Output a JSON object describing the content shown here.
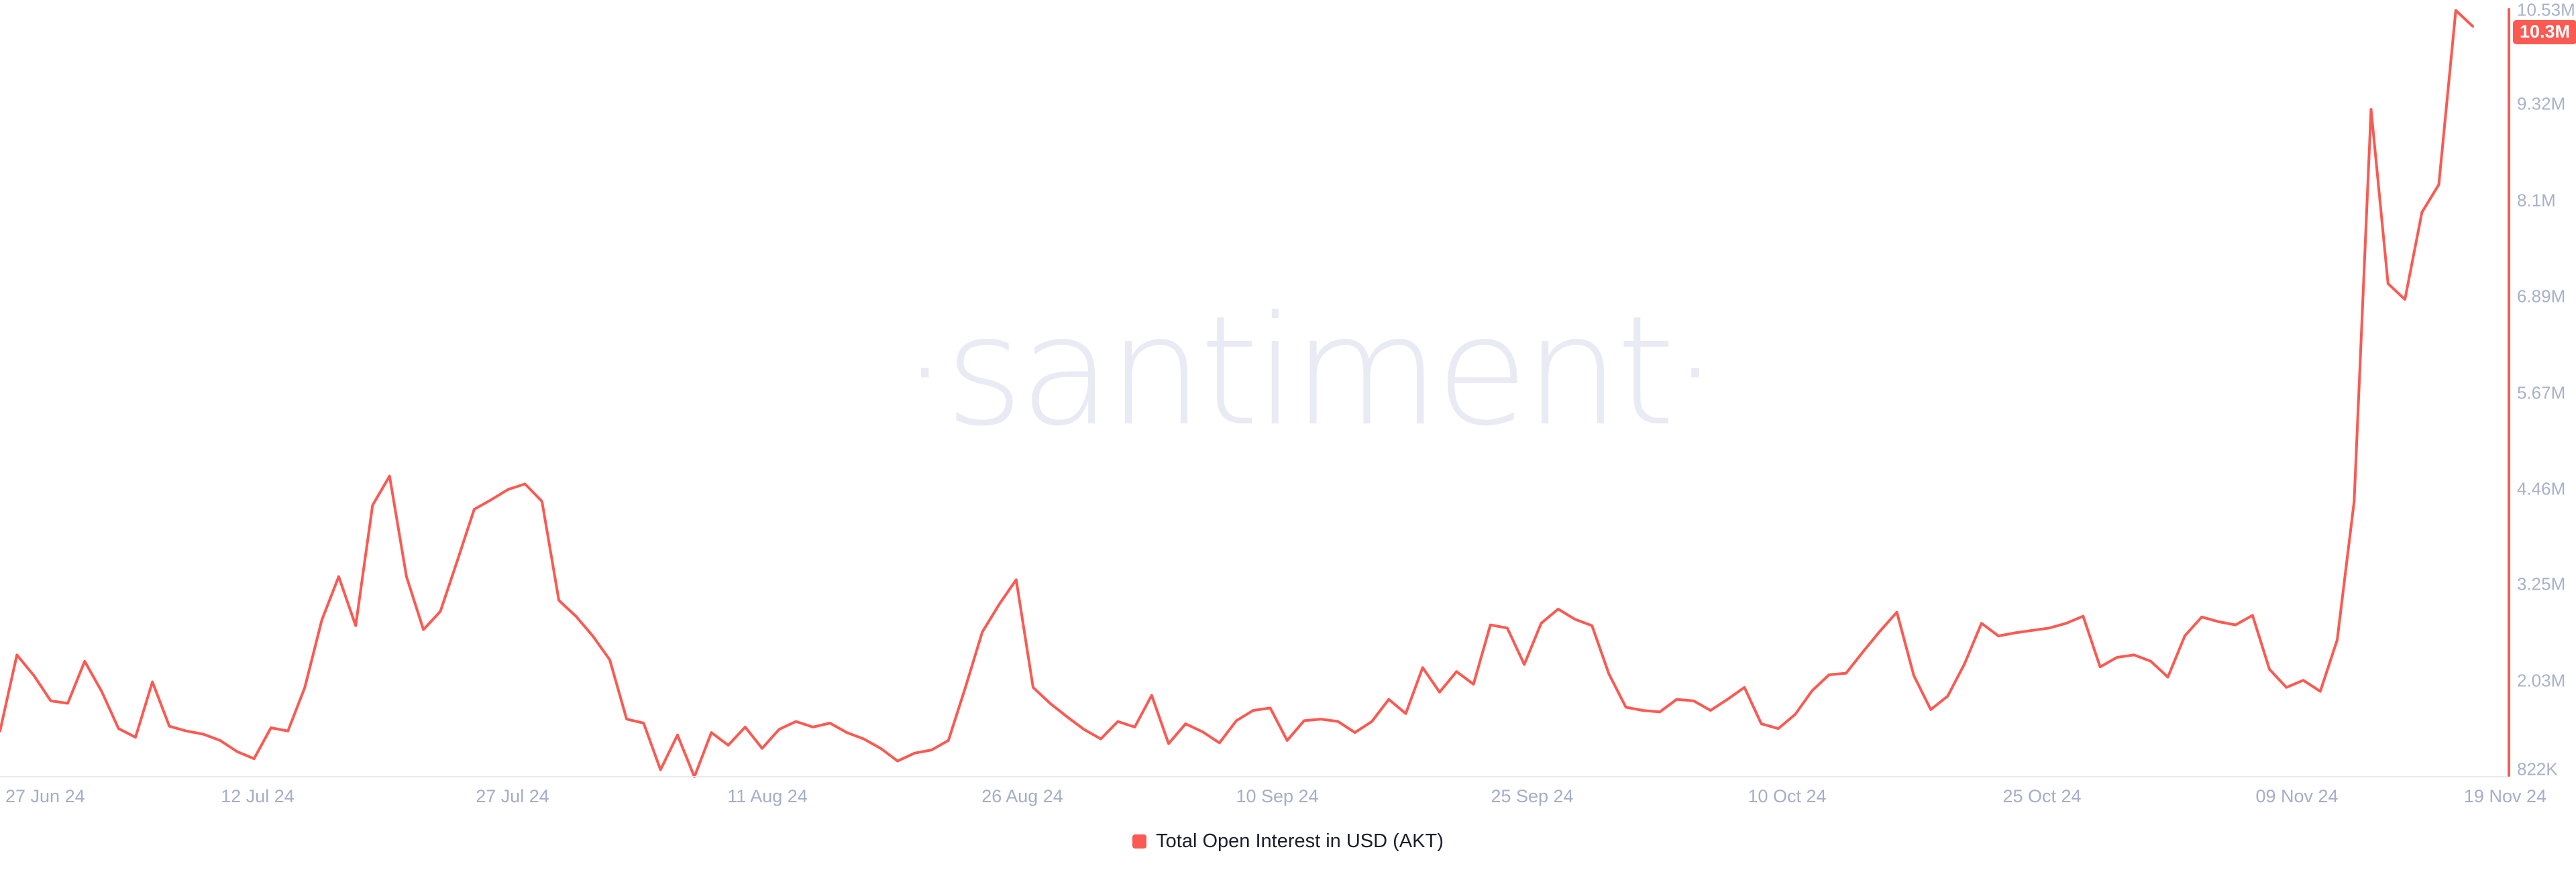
{
  "watermark": "·santiment·",
  "colors": {
    "accent_red": "#FA5A52",
    "y_label": "#A8B1C8",
    "x_label": "#A4AEC8",
    "legend_text": "#1B1E2B",
    "watermark": "#E8EAF4",
    "axis_line": "#E7EAF2",
    "background": "#ffffff"
  },
  "badge": {
    "label": "10.3M"
  },
  "legend": {
    "label": "Total Open Interest in USD (AKT)"
  },
  "chart_data": {
    "type": "line",
    "title": "",
    "xlabel": "",
    "ylabel": "",
    "legend_position": "bottom-center",
    "grid": "none",
    "unit": "USD",
    "values_unit": "millions USD",
    "ylim": [
      0.822,
      10.53
    ],
    "x_range": [
      "27 Jun 24",
      "19 Nov 24"
    ],
    "last_value_label": "10.3M",
    "x_ticks": [
      "27 Jun 24",
      "12 Jul 24",
      "27 Jul 24",
      "11 Aug 24",
      "26 Aug 24",
      "10 Sep 24",
      "25 Sep 24",
      "10 Oct 24",
      "25 Oct 24",
      "09 Nov 24",
      "19 Nov 24"
    ],
    "y_ticks": [
      {
        "label": "10.53M",
        "value": 10.53
      },
      {
        "label": "9.32M",
        "value": 9.32
      },
      {
        "label": "8.1M",
        "value": 8.1
      },
      {
        "label": "6.89M",
        "value": 6.89
      },
      {
        "label": "5.67M",
        "value": 5.67
      },
      {
        "label": "4.46M",
        "value": 4.46
      },
      {
        "label": "3.25M",
        "value": 3.25
      },
      {
        "label": "2.03M",
        "value": 2.03
      },
      {
        "label": "822K",
        "value": 0.822
      }
    ],
    "series": [
      {
        "name": "Total Open Interest in USD (AKT)",
        "color": "#FA5A52",
        "values": [
          1.4,
          2.36,
          2.1,
          1.78,
          1.75,
          2.28,
          1.9,
          1.43,
          1.32,
          2.02,
          1.46,
          1.4,
          1.36,
          1.28,
          1.14,
          1.05,
          1.44,
          1.4,
          1.95,
          2.8,
          3.35,
          2.73,
          4.25,
          4.62,
          3.35,
          2.68,
          2.91,
          3.55,
          4.2,
          4.32,
          4.45,
          4.52,
          4.3,
          3.05,
          2.85,
          2.6,
          2.3,
          1.55,
          1.5,
          0.91,
          1.35,
          0.82,
          1.38,
          1.22,
          1.45,
          1.18,
          1.42,
          1.52,
          1.45,
          1.5,
          1.38,
          1.3,
          1.18,
          1.02,
          1.12,
          1.16,
          1.28,
          1.95,
          2.65,
          3.0,
          3.31,
          1.95,
          1.75,
          1.58,
          1.42,
          1.3,
          1.52,
          1.45,
          1.85,
          1.24,
          1.49,
          1.39,
          1.25,
          1.53,
          1.66,
          1.69,
          1.28,
          1.53,
          1.55,
          1.52,
          1.38,
          1.52,
          1.8,
          1.62,
          2.2,
          1.89,
          2.15,
          1.99,
          2.74,
          2.7,
          2.24,
          2.76,
          2.94,
          2.81,
          2.73,
          2.12,
          1.7,
          1.66,
          1.64,
          1.8,
          1.78,
          1.66,
          1.8,
          1.95,
          1.49,
          1.43,
          1.61,
          1.91,
          2.11,
          2.13,
          2.4,
          2.66,
          2.9,
          2.1,
          1.67,
          1.84,
          2.25,
          2.76,
          2.6,
          2.64,
          2.67,
          2.7,
          2.76,
          2.85,
          2.21,
          2.33,
          2.36,
          2.28,
          2.08,
          2.6,
          2.84,
          2.78,
          2.74,
          2.86,
          2.18,
          1.95,
          2.04,
          1.9,
          2.55,
          4.3,
          9.25,
          7.05,
          6.85,
          7.95,
          8.3,
          10.5,
          10.3
        ]
      }
    ]
  }
}
